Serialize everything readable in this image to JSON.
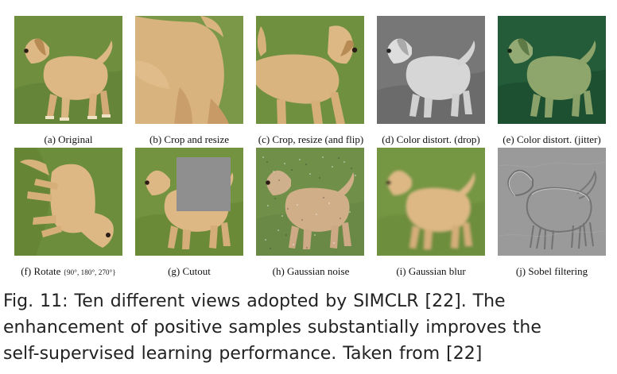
{
  "figure": {
    "panels": [
      {
        "id": "a",
        "label": "(a) Original",
        "variant": "original"
      },
      {
        "id": "b",
        "label": "(b) Crop and resize",
        "variant": "crop"
      },
      {
        "id": "c",
        "label": "(c) Crop, resize (and flip)",
        "variant": "flip"
      },
      {
        "id": "d",
        "label": "(d) Color distort. (drop)",
        "variant": "gray"
      },
      {
        "id": "e",
        "label": "(e) Color distort. (jitter)",
        "variant": "jitter"
      },
      {
        "id": "f",
        "label": "(f) Rotate",
        "label_suffix": "{90°, 180°, 270°}",
        "variant": "rotate"
      },
      {
        "id": "g",
        "label": "(g) Cutout",
        "variant": "cutout"
      },
      {
        "id": "h",
        "label": "(h) Gaussian noise",
        "variant": "noise"
      },
      {
        "id": "i",
        "label": "(i) Gaussian blur",
        "variant": "blur"
      },
      {
        "id": "j",
        "label": "(j) Sobel filtering",
        "variant": "sobel"
      }
    ],
    "caption": {
      "line1": "Fig. 11: Ten different views adopted by SIMCLR [22]. The",
      "line2": "enhancement of positive samples substantially improves the",
      "line3": "self-supervised learning performance. Taken from [22]"
    }
  },
  "colors": {
    "grass": "#6f8f3f",
    "dog": "#d9b57f",
    "cutout": "#8f8f8f",
    "sobel": "#9a9a9a"
  }
}
